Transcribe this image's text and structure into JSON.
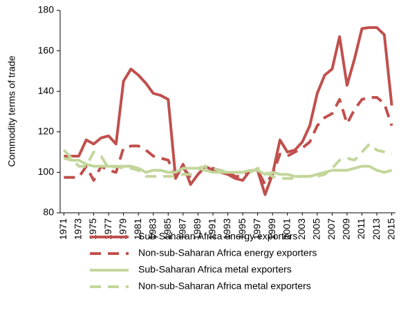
{
  "chart_data": {
    "type": "line",
    "y_label": "Commodity  terms of trade",
    "x": [
      1971,
      1972,
      1973,
      1974,
      1975,
      1976,
      1977,
      1978,
      1979,
      1980,
      1981,
      1982,
      1983,
      1984,
      1985,
      1986,
      1987,
      1988,
      1989,
      1990,
      1991,
      1992,
      1993,
      1994,
      1995,
      1996,
      1997,
      1998,
      1999,
      2000,
      2001,
      2002,
      2003,
      2004,
      2005,
      2006,
      2007,
      2008,
      2009,
      2010,
      2011,
      2012,
      2013,
      2014,
      2015
    ],
    "xlim": [
      1970.5,
      2015.5
    ],
    "xticks": [
      1971,
      1973,
      1975,
      1977,
      1979,
      1981,
      1983,
      1985,
      1987,
      1989,
      1991,
      1993,
      1995,
      1997,
      1999,
      2001,
      2003,
      2005,
      2007,
      2009,
      2011,
      2013,
      2015
    ],
    "ylim": [
      80,
      180
    ],
    "yticks": [
      80,
      100,
      120,
      140,
      160,
      180
    ],
    "series": [
      {
        "name": "Sub-Saharan Africa energy exporters",
        "color": "#c0504d",
        "dash": false,
        "values": [
          108,
          108,
          108,
          116,
          114,
          117,
          118,
          114,
          145,
          151,
          148,
          144,
          139,
          138,
          136,
          97,
          104,
          94,
          99,
          103,
          101,
          100,
          99,
          97,
          96,
          101,
          101,
          89,
          99,
          116,
          110,
          111,
          115,
          123,
          139,
          148,
          151,
          167,
          143,
          156,
          171,
          171.5,
          171.5,
          168,
          133
        ]
      },
      {
        "name": "Non-sub-Saharan Africa energy exporters",
        "color": "#c0504d",
        "dash": true,
        "values": [
          97.5,
          97.5,
          97.5,
          103,
          96,
          103,
          101,
          100,
          112,
          113,
          113,
          111,
          108,
          107,
          106,
          98,
          102,
          98,
          99,
          103,
          102,
          101,
          100,
          98,
          98,
          101,
          101,
          94,
          99,
          109,
          108,
          110,
          112,
          115,
          123,
          127,
          129,
          136,
          124,
          131,
          136,
          137,
          137,
          134,
          123
        ]
      },
      {
        "name": "Sub-Saharan Africa metal exporters",
        "color": "#c3d69b",
        "dash": false,
        "values": [
          107,
          106,
          106,
          104,
          103,
          103,
          103,
          103,
          103,
          103,
          102,
          100,
          101,
          101,
          100,
          100,
          102,
          102,
          102,
          101,
          100,
          100,
          100,
          100,
          100,
          101,
          101,
          99,
          100,
          99,
          99,
          98,
          98,
          98,
          99,
          100,
          101,
          101,
          101,
          102,
          103,
          103,
          101,
          100,
          101
        ]
      },
      {
        "name": "Non-sub-Saharan Africa metal exporters",
        "color": "#c3d69b",
        "dash": true,
        "values": [
          111,
          107,
          103,
          103,
          110,
          108,
          102,
          103,
          102,
          102,
          101,
          98,
          98,
          98,
          98,
          98,
          99,
          99,
          102,
          103,
          102,
          101,
          100,
          100,
          100,
          100,
          102,
          100,
          98,
          97,
          97,
          97,
          98,
          98,
          98,
          99,
          102,
          106,
          107,
          106,
          110,
          114,
          111,
          110,
          109
        ]
      }
    ]
  }
}
